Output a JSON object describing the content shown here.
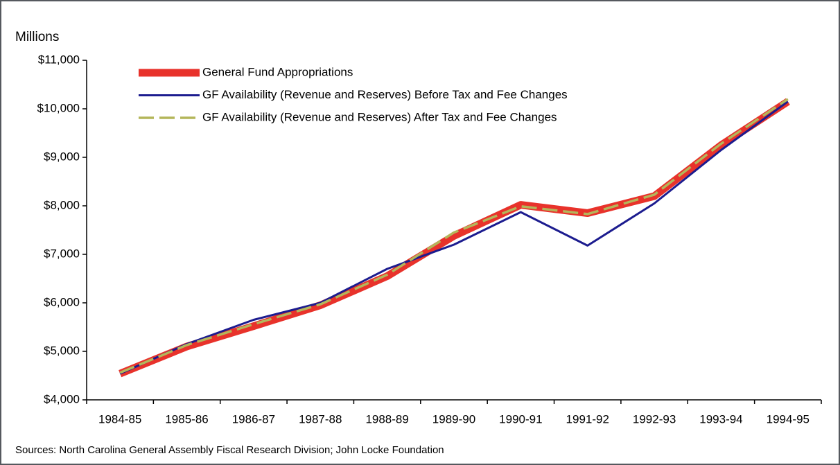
{
  "chart_data": {
    "type": "line",
    "y_axis_label": "Millions",
    "source": "Sources: North Carolina General Assembly Fiscal Research Division; John Locke Foundation",
    "categories": [
      "1984-85",
      "1985-86",
      "1986-87",
      "1987-88",
      "1988-89",
      "1989-90",
      "1990-91",
      "1991-92",
      "1992-93",
      "1993-94",
      "1994-95"
    ],
    "series": [
      {
        "name": "General Fund Appropriations",
        "color": "#e8322b",
        "width": 11,
        "dash": false,
        "values": [
          4540,
          5100,
          5520,
          5950,
          6550,
          7380,
          8020,
          7850,
          8200,
          9250,
          10150
        ]
      },
      {
        "name": "GF Availability (Revenue and Reserves) Before Tax and Fee Changes",
        "color": "#1c1c8f",
        "width": 3,
        "dash": false,
        "values": [
          4540,
          5150,
          5650,
          6000,
          6700,
          7200,
          7870,
          7180,
          8050,
          9150,
          10150
        ]
      },
      {
        "name": "GF Availability (Revenue and Reserves) After Tax and Fee Changes",
        "color": "#b4b65a",
        "width": 3.5,
        "dash": true,
        "values": [
          4560,
          5130,
          5560,
          5970,
          6580,
          7450,
          7990,
          7830,
          8230,
          9280,
          10200
        ]
      }
    ],
    "ylim": [
      4000,
      11000
    ],
    "yticks": [
      {
        "value": 4000,
        "label": "$4,000"
      },
      {
        "value": 5000,
        "label": "$5,000"
      },
      {
        "value": 6000,
        "label": "$6,000"
      },
      {
        "value": 7000,
        "label": "$7,000"
      },
      {
        "value": 8000,
        "label": "$8,000"
      },
      {
        "value": 9000,
        "label": "$9,000"
      },
      {
        "value": 10000,
        "label": "$10,000"
      },
      {
        "value": 11000,
        "label": "$11,000"
      }
    ],
    "grid": false,
    "legend": "top-left"
  }
}
